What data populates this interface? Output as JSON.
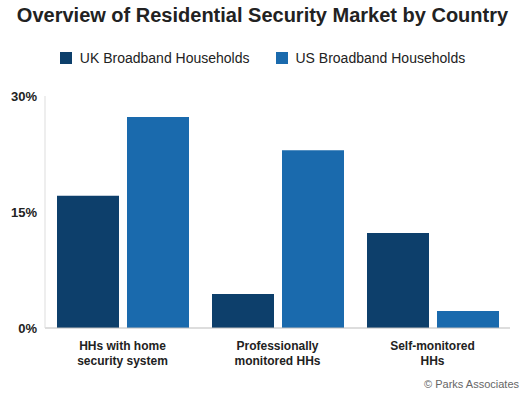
{
  "chart_data": {
    "type": "bar",
    "title": "Overview of Residential Security Market by Country",
    "categories": [
      "HHs with home security system",
      "Professionally monitored HHs",
      "Self-monitored HHs"
    ],
    "series": [
      {
        "name": "UK Broadband Households",
        "color": "#0d3f6b",
        "values": [
          17.1,
          4.4,
          12.3
        ]
      },
      {
        "name": "US Broadband Households",
        "color": "#1a6aad",
        "values": [
          27.3,
          23.0,
          2.2
        ]
      }
    ],
    "ylim": [
      0,
      30
    ],
    "yticks": [
      {
        "value": 0,
        "label": "0%"
      },
      {
        "value": 15,
        "label": "15%"
      },
      {
        "value": 30,
        "label": "30%"
      }
    ],
    "grid": false,
    "legend": "top",
    "annotations": [
      "© Parks Associates"
    ]
  }
}
